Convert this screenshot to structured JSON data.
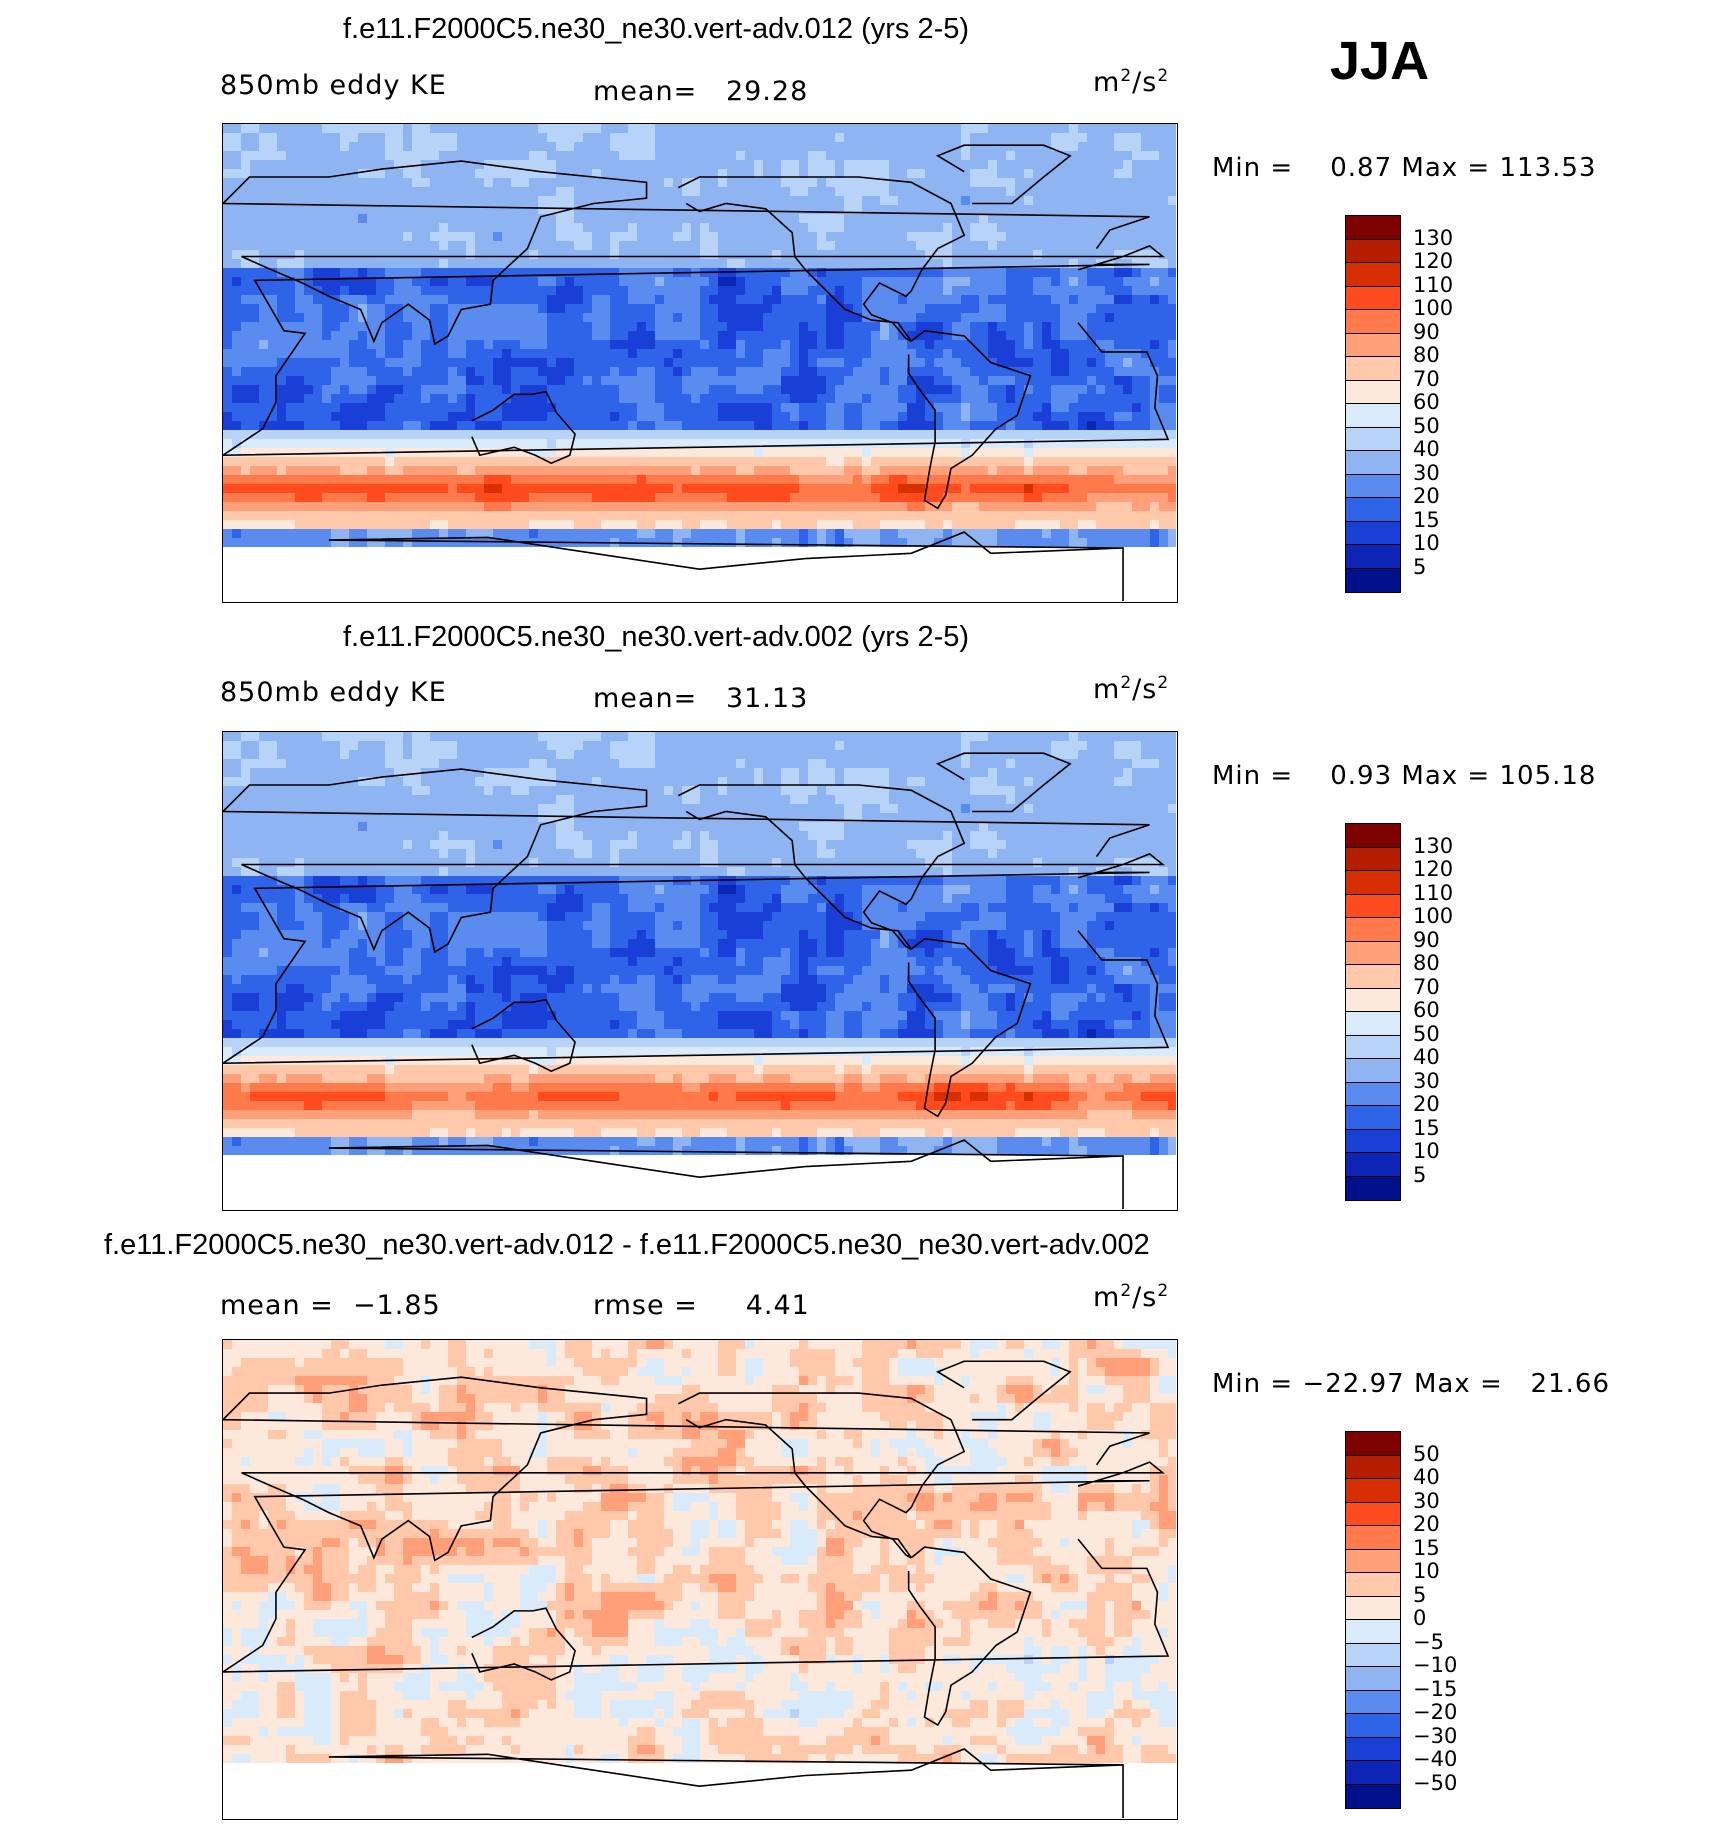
{
  "season": "JJA",
  "chart_data": [
    {
      "type": "heatmap",
      "title": "f.e11.F2000C5.ne30_ne30.vert-adv.012 (yrs 2-5)",
      "variable": "850mb eddy KE",
      "units_base": "m",
      "units_exp1": "2",
      "units_sep": "/s",
      "units_exp2": "2",
      "mean_label": "mean=",
      "mean": "29.28",
      "min_label": "Min =",
      "min": "0.87",
      "max_label": "Max =",
      "max": "113.53",
      "colorbar_levels": [
        "130",
        "120",
        "110",
        "100",
        "90",
        "80",
        "70",
        "60",
        "50",
        "40",
        "30",
        "20",
        "15",
        "10",
        "5"
      ],
      "colorbar_colors": [
        "#7f0000",
        "#b31e00",
        "#d63000",
        "#ff4b1d",
        "#ff7a4a",
        "#ffa07a",
        "#ffc8aa",
        "#fde8dc",
        "#d9eafa",
        "#b7d3f7",
        "#8fb4f2",
        "#5a8cf0",
        "#2f63e8",
        "#1a3fd7",
        "#0d25b5",
        "#00108a"
      ],
      "pattern": "kinetic"
    },
    {
      "type": "heatmap",
      "title": "f.e11.F2000C5.ne30_ne30.vert-adv.002 (yrs 2-5)",
      "variable": "850mb eddy KE",
      "units_base": "m",
      "units_exp1": "2",
      "units_sep": "/s",
      "units_exp2": "2",
      "mean_label": "mean=",
      "mean": "31.13",
      "min_label": "Min =",
      "min": "0.93",
      "max_label": "Max =",
      "max": "105.18",
      "colorbar_levels": [
        "130",
        "120",
        "110",
        "100",
        "90",
        "80",
        "70",
        "60",
        "50",
        "40",
        "30",
        "20",
        "15",
        "10",
        "5"
      ],
      "colorbar_colors": [
        "#7f0000",
        "#b31e00",
        "#d63000",
        "#ff4b1d",
        "#ff7a4a",
        "#ffa07a",
        "#ffc8aa",
        "#fde8dc",
        "#d9eafa",
        "#b7d3f7",
        "#8fb4f2",
        "#5a8cf0",
        "#2f63e8",
        "#1a3fd7",
        "#0d25b5",
        "#00108a"
      ],
      "pattern": "kinetic2"
    },
    {
      "type": "heatmap",
      "title": "f.e11.F2000C5.ne30_ne30.vert-adv.012 - f.e11.F2000C5.ne30_ne30.vert-adv.002",
      "variable": "mean =",
      "variable_value": "−1.85",
      "units_base": "m",
      "units_exp1": "2",
      "units_sep": "/s",
      "units_exp2": "2",
      "mean_label": "rmse =",
      "mean": "4.41",
      "min_label": "Min =",
      "min": "−22.97",
      "max_label": "Max =",
      "max": "21.66",
      "colorbar_levels": [
        "50",
        "40",
        "30",
        "20",
        "15",
        "10",
        "5",
        "0",
        "−5",
        "−10",
        "−15",
        "−20",
        "−30",
        "−40",
        "−50"
      ],
      "colorbar_colors": [
        "#7f0000",
        "#b31e00",
        "#d63000",
        "#ff4b1d",
        "#ff7a4a",
        "#ffa07a",
        "#ffc8aa",
        "#fde8dc",
        "#d9eafa",
        "#b7d3f7",
        "#8fb4f2",
        "#5a8cf0",
        "#2f63e8",
        "#1a3fd7",
        "#0d25b5",
        "#00108a"
      ],
      "pattern": "diff"
    }
  ]
}
